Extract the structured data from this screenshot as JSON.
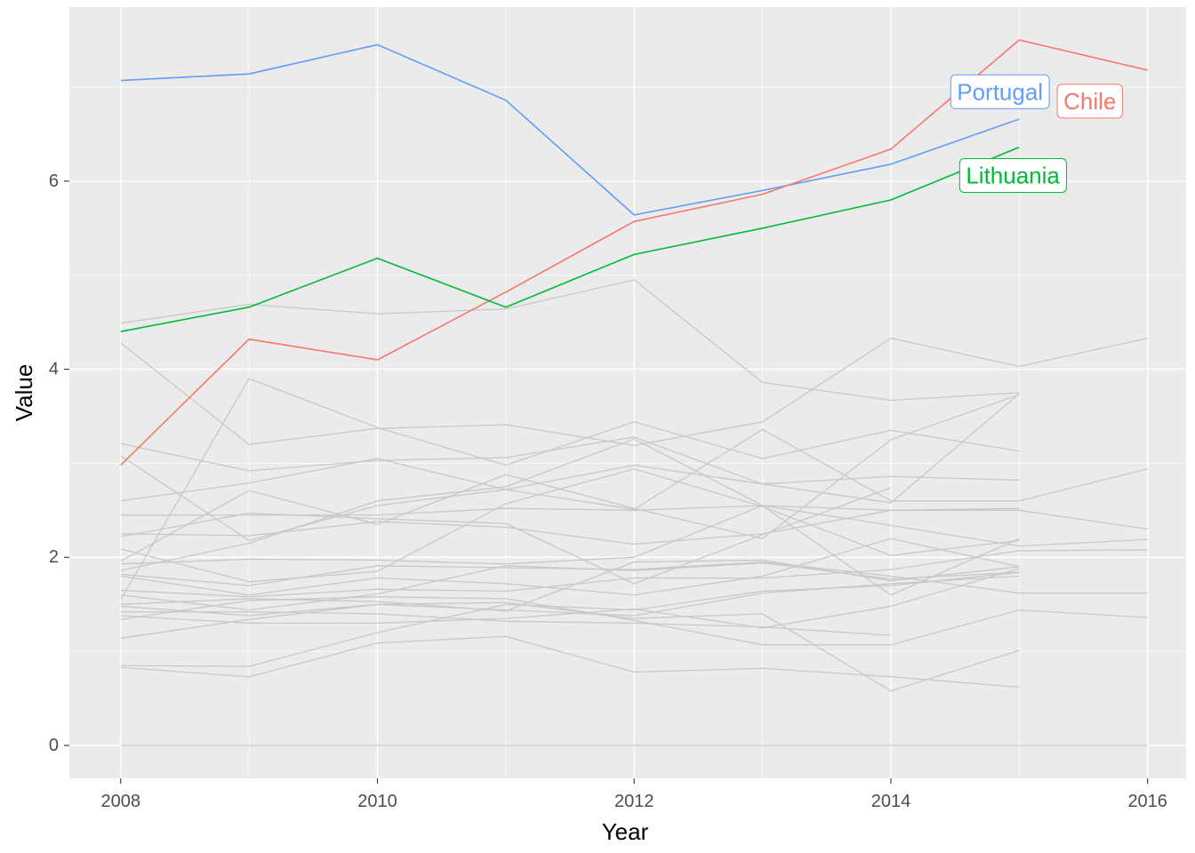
{
  "chart_data": {
    "type": "line",
    "xlabel": "Year",
    "ylabel": "Value",
    "xlim": [
      2007.6,
      2016.3
    ],
    "ylim": [
      -0.35,
      7.85
    ],
    "x_ticks": [
      2008,
      2010,
      2012,
      2014,
      2016
    ],
    "y_ticks": [
      0,
      2,
      4,
      6
    ],
    "grid": true,
    "legend": "none",
    "highlighted_series": [
      {
        "name": "Portugal",
        "color": "#619cff",
        "x": [
          2008,
          2009,
          2010,
          2011,
          2012,
          2013,
          2014,
          2015
        ],
        "values": [
          7.07,
          7.14,
          7.45,
          6.86,
          5.64,
          5.9,
          6.18,
          6.66
        ]
      },
      {
        "name": "Chile",
        "color": "#f8766d",
        "x": [
          2008,
          2009,
          2010,
          2011,
          2012,
          2013,
          2014,
          2015,
          2016
        ],
        "values": [
          2.98,
          4.32,
          4.1,
          4.82,
          5.57,
          5.86,
          6.34,
          7.5,
          7.18
        ]
      },
      {
        "name": "Lithuania",
        "color": "#00ba38",
        "x": [
          2008,
          2009,
          2010,
          2011,
          2012,
          2013,
          2014,
          2015
        ],
        "values": [
          4.4,
          4.66,
          5.18,
          4.66,
          5.22,
          5.5,
          5.8,
          6.36
        ]
      }
    ],
    "labels": [
      {
        "text": "Portugal",
        "series": "Portugal",
        "x": 2014.85,
        "y": 6.95
      },
      {
        "text": "Chile",
        "series": "Chile",
        "x": 2015.55,
        "y": 6.85
      },
      {
        "text": "Lithuania",
        "series": "Lithuania",
        "x": 2014.95,
        "y": 6.06
      }
    ],
    "background_color": "#c8c8c8",
    "background_series": [
      {
        "x": [
          2008,
          2009,
          2010,
          2011,
          2012,
          2013,
          2014,
          2015
        ],
        "values": [
          4.49,
          4.69,
          4.59,
          4.64,
          4.95,
          3.86,
          3.67,
          3.75
        ]
      },
      {
        "x": [
          2008,
          2009,
          2010,
          2011,
          2012,
          2013,
          2014,
          2015,
          2016
        ],
        "values": [
          4.28,
          3.2,
          3.37,
          3.41,
          3.19,
          3.44,
          4.33,
          4.03,
          4.33
        ]
      },
      {
        "x": [
          2008,
          2009,
          2010,
          2011,
          2012,
          2013,
          2014,
          2015
        ],
        "values": [
          1.55,
          3.9,
          3.38,
          2.98,
          3.44,
          3.05,
          3.35,
          3.13
        ]
      },
      {
        "x": [
          2008,
          2009,
          2010,
          2011,
          2012,
          2013,
          2014,
          2015
        ],
        "values": [
          3.21,
          2.92,
          3.03,
          3.06,
          3.28,
          2.78,
          2.58,
          3.74
        ]
      },
      {
        "x": [
          2008,
          2009,
          2010,
          2011,
          2012,
          2013,
          2014,
          2015
        ],
        "values": [
          3.08,
          2.18,
          2.55,
          2.72,
          2.98,
          2.78,
          2.86,
          2.82
        ]
      },
      {
        "x": [
          2008,
          2009,
          2010,
          2011,
          2012,
          2013,
          2014,
          2015,
          2016
        ],
        "values": [
          2.6,
          2.79,
          3.05,
          2.72,
          2.51,
          3.36,
          2.6,
          2.6,
          2.94
        ]
      },
      {
        "x": [
          2008,
          2009,
          2010,
          2011,
          2012,
          2013,
          2014,
          2015
        ],
        "values": [
          2.45,
          2.45,
          2.45,
          2.52,
          2.5,
          2.55,
          2.5,
          2.52
        ]
      },
      {
        "x": [
          2008,
          2009,
          2010,
          2011,
          2012,
          2013,
          2014
        ],
        "values": [
          2.22,
          2.47,
          2.41,
          2.36,
          1.72,
          2.24,
          2.74
        ]
      },
      {
        "x": [
          2008,
          2009,
          2010,
          2011,
          2012,
          2013,
          2014,
          2015,
          2016
        ],
        "values": [
          2.25,
          2.23,
          2.38,
          2.32,
          2.14,
          2.25,
          2.5,
          2.5,
          2.3
        ]
      },
      {
        "x": [
          2008,
          2009,
          2010,
          2011,
          2012,
          2013,
          2014,
          2015
        ],
        "values": [
          2.09,
          1.74,
          1.85,
          2.57,
          2.94,
          2.54,
          2.02,
          2.18
        ]
      },
      {
        "x": [
          2008,
          2009,
          2010,
          2011,
          2012,
          2013,
          2014,
          2015
        ],
        "values": [
          1.96,
          2.71,
          2.35,
          2.88,
          2.52,
          2.2,
          3.25,
          3.73
        ]
      },
      {
        "x": [
          2008,
          2009,
          2010,
          2011,
          2012,
          2013,
          2014,
          2015,
          2016
        ],
        "values": [
          1.93,
          1.98,
          1.97,
          1.93,
          2.0,
          2.55,
          2.34,
          2.12,
          2.19
        ]
      },
      {
        "x": [
          2008,
          2009,
          2010,
          2011,
          2012,
          2013,
          2014,
          2015
        ],
        "values": [
          1.86,
          2.15,
          2.6,
          2.75,
          3.26,
          2.55,
          1.6,
          2.2
        ]
      },
      {
        "x": [
          2008,
          2009,
          2010,
          2011,
          2012,
          2013,
          2014,
          2015,
          2016
        ],
        "values": [
          1.82,
          1.7,
          1.91,
          1.89,
          1.87,
          1.95,
          1.8,
          1.62,
          1.62
        ]
      },
      {
        "x": [
          2008,
          2009,
          2010,
          2011,
          2012,
          2013,
          2014,
          2015
        ],
        "values": [
          1.8,
          1.6,
          1.78,
          1.72,
          1.6,
          1.8,
          2.2,
          1.9
        ]
      },
      {
        "x": [
          2008,
          2009,
          2010,
          2011,
          2012,
          2013,
          2014,
          2015,
          2016
        ],
        "values": [
          1.65,
          1.58,
          1.66,
          1.64,
          1.78,
          1.78,
          1.87,
          2.07,
          2.08
        ]
      },
      {
        "x": [
          2008,
          2009,
          2010,
          2011,
          2012,
          2013,
          2014,
          2015
        ],
        "values": [
          1.6,
          1.44,
          1.61,
          1.91,
          1.86,
          1.94,
          1.77,
          1.84
        ]
      },
      {
        "x": [
          2008,
          2009,
          2010,
          2011,
          2012,
          2013,
          2014,
          2015
        ],
        "values": [
          1.5,
          1.56,
          1.53,
          1.43,
          1.95,
          1.97,
          1.75,
          1.9
        ]
      },
      {
        "x": [
          2008,
          2009,
          2010,
          2011,
          2012,
          2013,
          2014,
          2015
        ],
        "values": [
          1.48,
          1.38,
          1.5,
          1.44,
          1.38,
          1.62,
          1.72,
          1.8
        ]
      },
      {
        "x": [
          2008,
          2009,
          2010,
          2011,
          2012,
          2013,
          2014
        ],
        "values": [
          1.42,
          1.42,
          1.4,
          1.32,
          1.3,
          1.26,
          1.17
        ]
      },
      {
        "x": [
          2008,
          2009,
          2010,
          2011,
          2012,
          2013,
          2014,
          2015
        ],
        "values": [
          1.38,
          1.3,
          1.3,
          1.35,
          1.45,
          1.25,
          1.48,
          1.88
        ]
      },
      {
        "x": [
          2008,
          2009,
          2010,
          2011,
          2012,
          2013,
          2014,
          2015,
          2016
        ],
        "values": [
          1.34,
          1.54,
          1.58,
          1.56,
          1.33,
          1.07,
          1.07,
          1.44,
          1.36
        ]
      },
      {
        "x": [
          2008,
          2009,
          2010,
          2011,
          2012,
          2013,
          2014,
          2015
        ],
        "values": [
          1.14,
          1.34,
          1.5,
          1.52,
          1.35,
          1.4,
          0.58,
          1.01
        ]
      },
      {
        "x": [
          2008,
          2009,
          2010,
          2011,
          2012,
          2013,
          2014,
          2015
        ],
        "values": [
          0.85,
          0.84,
          1.2,
          1.5,
          1.44,
          1.64,
          1.7,
          1.84
        ]
      },
      {
        "x": [
          2008,
          2009,
          2010,
          2011,
          2012,
          2013,
          2014,
          2015
        ],
        "values": [
          0.83,
          0.73,
          1.09,
          1.16,
          0.78,
          0.82,
          0.73,
          0.62
        ]
      },
      {
        "x": [
          2008,
          2009,
          2010,
          2011,
          2012,
          2013,
          2014,
          2015,
          2016
        ],
        "values": [
          0.0,
          0.0,
          0.0,
          0.0,
          0.0,
          0.0,
          0.0,
          0.0,
          0.0
        ]
      }
    ]
  }
}
